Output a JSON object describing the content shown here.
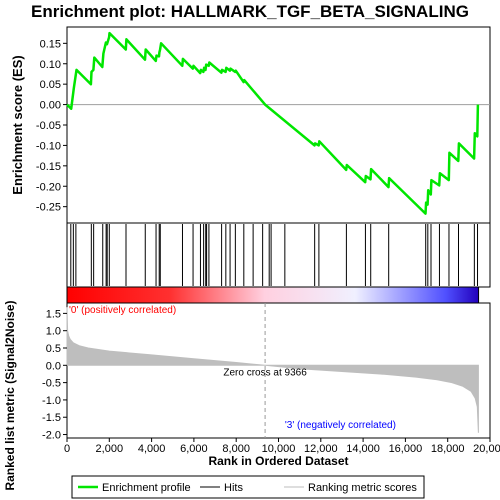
{
  "chart_data": {
    "type": "line",
    "title": "Enrichment plot: HALLMARK_TGF_BETA_SIGNALING",
    "es_panel": {
      "ylabel": "Enrichment score (ES)",
      "ylim": [
        -0.29,
        0.19
      ],
      "yticks": [
        -0.25,
        -0.2,
        -0.15,
        -0.1,
        -0.05,
        0.0,
        0.05,
        0.1,
        0.15
      ],
      "ytick_labels": [
        "-0.25",
        "-0.20",
        "-0.15",
        "-0.10",
        "-0.05",
        "0.00",
        "0.05",
        "0.10",
        "0.15"
      ],
      "series": [
        {
          "name": "Enrichment profile",
          "color": "#00e600",
          "x": [
            0,
            200,
            300,
            320,
            450,
            1130,
            1160,
            1250,
            1290,
            1670,
            1720,
            1840,
            1890,
            1990,
            2010,
            2780,
            2810,
            3690,
            3720,
            4200,
            4230,
            4350,
            4370,
            4400,
            4450,
            5450,
            5480,
            5950,
            5980,
            6300,
            6330,
            6450,
            6480,
            6550,
            6580,
            6700,
            6730,
            7300,
            7330,
            7500,
            7530,
            7700,
            7730,
            7950,
            7980,
            8350,
            8380,
            9366,
            11700,
            11730,
            11900,
            11930,
            13200,
            13230,
            14100,
            14130,
            14350,
            14380,
            15200,
            15230,
            16950,
            16980,
            17050,
            17080,
            17200,
            17230,
            17600,
            17630,
            18050,
            18080,
            18500,
            18530,
            19250,
            19280,
            19400,
            19430
          ],
          "y": [
            0.0,
            -0.01,
            0.03,
            0.04,
            0.085,
            0.05,
            0.08,
            0.085,
            0.115,
            0.092,
            0.125,
            0.152,
            0.148,
            0.165,
            0.175,
            0.135,
            0.16,
            0.11,
            0.135,
            0.107,
            0.12,
            0.118,
            0.128,
            0.135,
            0.15,
            0.095,
            0.112,
            0.088,
            0.095,
            0.077,
            0.085,
            0.08,
            0.09,
            0.085,
            0.098,
            0.095,
            0.103,
            0.078,
            0.085,
            0.08,
            0.09,
            0.083,
            0.088,
            0.08,
            0.083,
            0.055,
            0.06,
            0.0,
            -0.1,
            -0.095,
            -0.1,
            -0.09,
            -0.16,
            -0.148,
            -0.19,
            -0.175,
            -0.183,
            -0.158,
            -0.202,
            -0.18,
            -0.267,
            -0.24,
            -0.245,
            -0.21,
            -0.22,
            -0.185,
            -0.198,
            -0.168,
            -0.185,
            -0.118,
            -0.138,
            -0.095,
            -0.132,
            -0.07,
            -0.078,
            0.0
          ]
        }
      ]
    },
    "hits": [
      180,
      300,
      420,
      1150,
      1260,
      1690,
      1850,
      1900,
      2000,
      2790,
      3700,
      4210,
      4360,
      4410,
      5460,
      5960,
      6310,
      6460,
      6560,
      6600,
      6710,
      7310,
      7510,
      7710,
      7960,
      8360,
      8800,
      9250,
      9560,
      9650,
      10300,
      11710,
      11910,
      13210,
      14110,
      14360,
      15210,
      16960,
      17060,
      17210,
      17610,
      18060,
      18510,
      19260,
      19410
    ],
    "metric_panel": {
      "ylabel": "Ranked list metric (Signal2Noise)",
      "ylim": [
        -2.1,
        1.8
      ],
      "yticks": [
        -2.0,
        -1.5,
        -1.0,
        -0.5,
        0.0,
        0.5,
        1.0,
        1.5
      ],
      "ytick_labels": [
        "-2.0",
        "-1.5",
        "-1.0",
        "-0.5",
        "0.0",
        "0.5",
        "1.0",
        "1.5"
      ],
      "x": [
        0,
        30,
        80,
        150,
        300,
        600,
        1000,
        2000,
        4000,
        6000,
        8000,
        9366,
        11000,
        13000,
        15000,
        16500,
        17500,
        18200,
        18700,
        19100,
        19300,
        19400,
        19450
      ],
      "y": [
        1.68,
        1.0,
        0.85,
        0.75,
        0.65,
        0.56,
        0.5,
        0.41,
        0.3,
        0.19,
        0.08,
        0.0,
        -0.1,
        -0.18,
        -0.26,
        -0.34,
        -0.42,
        -0.5,
        -0.6,
        -0.75,
        -0.95,
        -1.2,
        -1.95
      ],
      "color": "#bebebe",
      "pos_label": "'0' (positively correlated)",
      "neg_label": "'3' (negatively correlated)",
      "zero_cross_label": "Zero cross at 9366",
      "zero_cross": 9366
    },
    "xaxis": {
      "xlabel": "Rank in Ordered Dataset",
      "xlim": [
        0,
        20000
      ],
      "xticks": [
        0,
        2000,
        4000,
        6000,
        8000,
        10000,
        12000,
        14000,
        16000,
        18000,
        20000
      ],
      "xtick_labels": [
        "0",
        "2,000",
        "4,000",
        "6,000",
        "8,000",
        "10,000",
        "12,000",
        "14,000",
        "16,000",
        "18,000",
        "20,000"
      ],
      "n_genes": 19460
    },
    "legend": {
      "placement": "bottom",
      "entries": [
        {
          "label": "Enrichment profile",
          "color": "#00e600"
        },
        {
          "label": "Hits",
          "color": "#000000"
        },
        {
          "label": "Ranking metric scores",
          "color": "#bebebe"
        }
      ]
    },
    "colors": {
      "pos_text": "#ff0000",
      "neg_text": "#0000ff",
      "heat_red": "#ff0000",
      "heat_white": "#ffffff",
      "heat_blue": "#0000ff",
      "heat_dark_blue": "#2200bb",
      "grid_zero": "#9e9e9e"
    }
  }
}
